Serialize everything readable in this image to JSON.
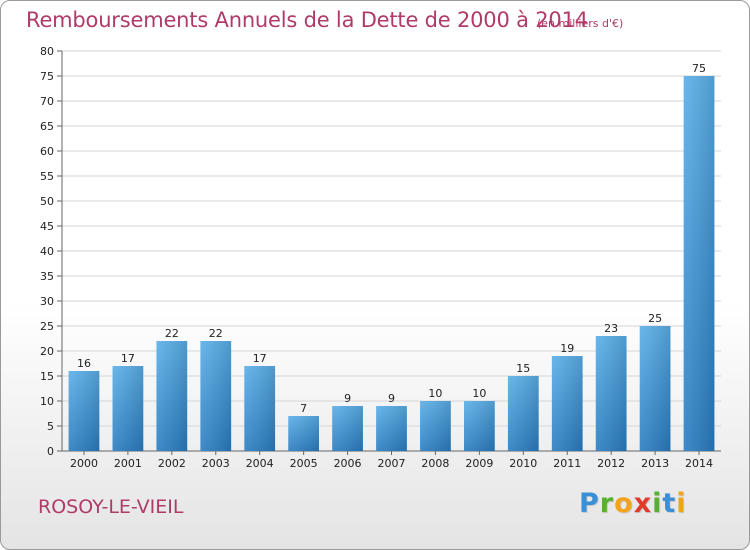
{
  "header": {
    "title": "Remboursements Annuels de la Dette de 2000 à 2014",
    "unit_note": "(en milliers d'€)"
  },
  "footer": {
    "commune": "ROSOY-LE-VIEIL",
    "logo": {
      "letters": [
        {
          "ch": "P",
          "color": "#3a8fd6"
        },
        {
          "ch": "r",
          "color": "#58b030"
        },
        {
          "ch": "o",
          "color": "#f2a21b"
        },
        {
          "ch": "x",
          "color": "#e03a2a"
        },
        {
          "ch": "i",
          "color": "#58b030"
        },
        {
          "ch": "t",
          "color": "#3a8fd6"
        },
        {
          "ch": "i",
          "color": "#f2a21b"
        }
      ]
    }
  },
  "chart_data": {
    "type": "bar",
    "title": "Remboursements Annuels de la Dette de 2000 à 2014",
    "subtitle": "(en milliers d'€)",
    "categories": [
      "2000",
      "2001",
      "2002",
      "2003",
      "2004",
      "2005",
      "2006",
      "2007",
      "2008",
      "2009",
      "2010",
      "2011",
      "2012",
      "2013",
      "2014"
    ],
    "values": [
      16,
      17,
      22,
      22,
      17,
      7,
      9,
      9,
      10,
      10,
      15,
      19,
      23,
      25,
      75
    ],
    "ylim": [
      0,
      80
    ],
    "yticks": [
      0,
      5,
      10,
      15,
      20,
      25,
      30,
      35,
      40,
      45,
      50,
      55,
      60,
      65,
      70,
      75,
      80
    ],
    "grid": true,
    "bar_color_top": "#5aaee8",
    "bar_color_bottom": "#2a7cc0"
  }
}
